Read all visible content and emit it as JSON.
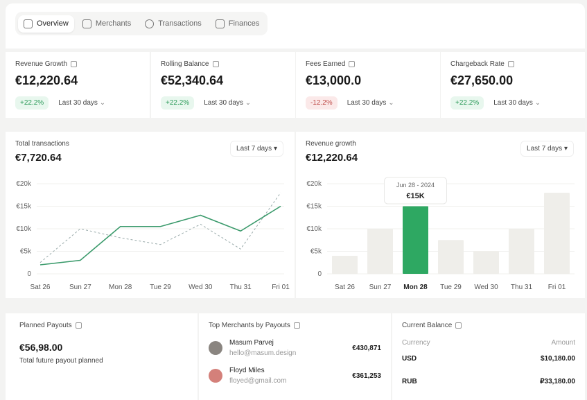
{
  "tabs": [
    "Overview",
    "Merchants",
    "Transactions",
    "Finances"
  ],
  "kpis": [
    {
      "label": "Revenue Growth",
      "value": "€12,220.64",
      "change": "+22.2%",
      "trend": "up",
      "period": "Last 30 days"
    },
    {
      "label": "Rolling Balance",
      "value": "€52,340.64",
      "change": "+22.2%",
      "trend": "up",
      "period": "Last 30 days"
    },
    {
      "label": "Fees Earned",
      "value": "€13,000.0",
      "change": "-12.2%",
      "trend": "down",
      "period": "Last 30 days"
    },
    {
      "label": "Chargeback Rate",
      "value": "€27,650.00",
      "change": "+22.2%",
      "trend": "up",
      "period": "Last 30 days"
    }
  ],
  "chart_data": [
    {
      "type": "line",
      "title": "Total transactions",
      "value": "€7,720.64",
      "period": "Last 7 days",
      "categories": [
        "Sat 26",
        "Sun 27",
        "Mon 28",
        "Tue 29",
        "Wed 30",
        "Thu 31",
        "Fri 01"
      ],
      "yticks": [
        "0",
        "€5k",
        "€10k",
        "€15k",
        "€20k"
      ],
      "ylim": [
        0,
        20000
      ],
      "series": [
        {
          "name": "current",
          "style": "solid",
          "color": "#3a9a6b",
          "values": [
            2000,
            3000,
            10500,
            10500,
            13000,
            9500,
            15000
          ]
        },
        {
          "name": "previous",
          "style": "dashed",
          "color": "#9aa",
          "values": [
            2500,
            10000,
            8000,
            6500,
            11000,
            5500,
            18000
          ]
        }
      ]
    },
    {
      "type": "bar",
      "title": "Revenue growth",
      "value": "€12,220.64",
      "period": "Last 7 days",
      "categories": [
        "Sat 26",
        "Sun 27",
        "Mon 28",
        "Tue 29",
        "Wed 30",
        "Thu 31",
        "Fri 01"
      ],
      "yticks": [
        "0",
        "€5k",
        "€10k",
        "€15k",
        "€20k"
      ],
      "ylim": [
        0,
        20000
      ],
      "values": [
        4000,
        10000,
        15000,
        7500,
        5000,
        10000,
        18000
      ],
      "highlight": 2,
      "tooltip": {
        "date": "Jun 28 - 2024",
        "value": "€15K"
      },
      "colors": {
        "bar": "#efeeea",
        "highlight": "#2ea862"
      }
    }
  ],
  "payouts": {
    "title": "Planned Payouts",
    "value": "€56,98.00",
    "caption": "Total future payout planned"
  },
  "merchants": {
    "title": "Top Merchants by Payouts",
    "items": [
      {
        "name": "Masum Parvej",
        "email": "hello@masum.design",
        "amount": "€430,871"
      },
      {
        "name": "Floyd Miles",
        "email": "floyed@gmail.com",
        "amount": "€361,253"
      }
    ]
  },
  "balance": {
    "title": "Current Balance",
    "col_currency": "Currency",
    "col_amount": "Amount",
    "rows": [
      {
        "currency": "USD",
        "amount": "$10,180.00"
      },
      {
        "currency": "RUB",
        "amount": "₽33,180.00"
      }
    ]
  }
}
